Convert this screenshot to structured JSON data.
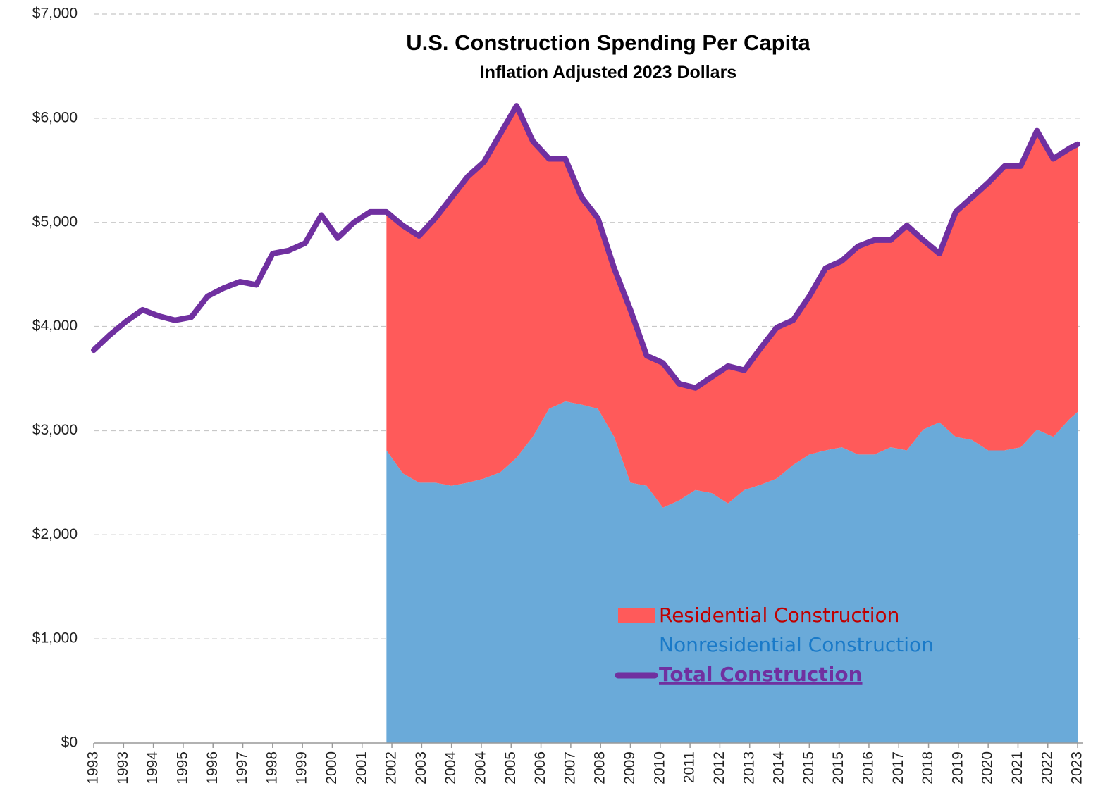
{
  "chart_data": {
    "type": "stacked_area_line",
    "title": "U.S. Construction Spending Per Capita",
    "subtitle": "Inflation Adjusted 2023 Dollars",
    "x": [
      1993,
      1993.5,
      1994,
      1994.5,
      1995,
      1995.5,
      1996,
      1996.5,
      1997,
      1997.5,
      1998,
      1998.5,
      1999,
      1999.5,
      2000,
      2000.5,
      2001,
      2001.5,
      2002,
      2002.5,
      2003,
      2003.5,
      2004,
      2004.5,
      2005,
      2005.5,
      2006,
      2006.5,
      2007,
      2007.5,
      2008,
      2008.5,
      2009,
      2009.5,
      2010,
      2010.5,
      2011,
      2011.5,
      2012,
      2012.5,
      2013,
      2013.5,
      2014,
      2014.5,
      2015,
      2015.5,
      2016,
      2016.5,
      2017,
      2017.5,
      2018,
      2018.5,
      2019,
      2019.5,
      2020,
      2020.5,
      2021,
      2021.5,
      2022,
      2022.5,
      2023,
      2023.25
    ],
    "series": [
      {
        "name": "Nonresidential Construction",
        "color": "#6aaad9",
        "kind": "area",
        "values": [
          null,
          null,
          null,
          null,
          null,
          null,
          null,
          null,
          null,
          null,
          null,
          null,
          null,
          null,
          null,
          null,
          null,
          null,
          2810,
          2590,
          2500,
          2500,
          2470,
          2500,
          2540,
          2600,
          2740,
          2940,
          3210,
          3280,
          3250,
          3210,
          2940,
          2500,
          2470,
          2260,
          2330,
          2430,
          2400,
          2300,
          2430,
          2480,
          2540,
          2670,
          2770,
          2810,
          2840,
          2770,
          2770,
          2840,
          2810,
          3010,
          3080,
          2940,
          2910,
          2810,
          2810,
          2840,
          3010,
          2940,
          3110,
          3180
        ]
      },
      {
        "name": "Residential Construction",
        "color": "#ff5a5a",
        "kind": "area",
        "values": [
          null,
          null,
          null,
          null,
          null,
          null,
          null,
          null,
          null,
          null,
          null,
          null,
          null,
          null,
          null,
          null,
          null,
          null,
          2290,
          2380,
          2370,
          2540,
          2770,
          2940,
          3040,
          3250,
          3380,
          2840,
          2400,
          2330,
          1990,
          1830,
          1620,
          1660,
          1250,
          1390,
          1120,
          980,
          1115,
          1320,
          1150,
          1310,
          1450,
          1390,
          1520,
          1750,
          1790,
          2000,
          2060,
          1990,
          2160,
          1820,
          1620,
          2160,
          2330,
          2570,
          2730,
          2700,
          2870,
          2670,
          2600,
          2570
        ]
      },
      {
        "name": "Total Construction",
        "color": "#7030a0",
        "kind": "line",
        "values": [
          3773,
          3920,
          4050,
          4160,
          4100,
          4060,
          4090,
          4290,
          4370,
          4430,
          4400,
          4700,
          4730,
          4800,
          5070,
          4850,
          5000,
          5100,
          5100,
          4970,
          4870,
          5040,
          5240,
          5440,
          5580,
          5850,
          6120,
          5780,
          5610,
          5610,
          5240,
          5040,
          4560,
          4160,
          3720,
          3650,
          3450,
          3410,
          3515,
          3620,
          3580,
          3790,
          3990,
          4060,
          4290,
          4560,
          4630,
          4770,
          4830,
          4830,
          4970,
          4830,
          4700,
          5100,
          5240,
          5380,
          5540,
          5540,
          5880,
          5610,
          5710,
          5750
        ]
      }
    ],
    "legend_order": [
      1,
      0,
      2
    ],
    "xlim": [
      1993,
      2023.4
    ],
    "xticks": [
      1993,
      {
        "value": 1993.9167,
        "label": "1993"
      },
      {
        "value": 1994.8333,
        "label": "1994"
      },
      {
        "value": 1995.75,
        "label": "1995"
      },
      {
        "value": 1996.6667,
        "label": "1996"
      },
      {
        "value": 1997.5833,
        "label": "1997"
      },
      {
        "value": 1998.5,
        "label": "1998"
      },
      {
        "value": 1999.4167,
        "label": "1999"
      },
      {
        "value": 2000.3333,
        "label": "2000"
      },
      {
        "value": 2001.25,
        "label": "2001"
      },
      {
        "value": 2002.1667,
        "label": "2002"
      },
      {
        "value": 2003.0833,
        "label": "2003"
      },
      2004,
      {
        "value": 2004.9167,
        "label": "2004"
      },
      {
        "value": 2005.8333,
        "label": "2005"
      },
      {
        "value": 2006.75,
        "label": "2006"
      },
      {
        "value": 2007.6667,
        "label": "2007"
      },
      {
        "value": 2008.5833,
        "label": "2008"
      },
      {
        "value": 2009.5,
        "label": "2009"
      },
      {
        "value": 2010.4167,
        "label": "2010"
      },
      {
        "value": 2011.3333,
        "label": "2011"
      },
      {
        "value": 2012.25,
        "label": "2012"
      },
      {
        "value": 2013.1667,
        "label": "2013"
      },
      {
        "value": 2014.0833,
        "label": "2014"
      },
      2015,
      {
        "value": 2015.9167,
        "label": "2015"
      },
      {
        "value": 2016.8333,
        "label": "2016"
      },
      {
        "value": 2017.75,
        "label": "2017"
      },
      {
        "value": 2018.6667,
        "label": "2018"
      },
      {
        "value": 2019.5833,
        "label": "2019"
      },
      {
        "value": 2020.5,
        "label": "2020"
      },
      {
        "value": 2021.4167,
        "label": "2021"
      },
      {
        "value": 2022.3333,
        "label": "2022"
      },
      {
        "value": 2023.25,
        "label": "2023"
      }
    ],
    "ylim": [
      0,
      7000
    ],
    "yticks": [
      {
        "value": 0,
        "label": "$0"
      },
      {
        "value": 1000,
        "label": "$1,000"
      },
      {
        "value": 2000,
        "label": "$2,000"
      },
      {
        "value": 3000,
        "label": "$3,000"
      },
      {
        "value": 4000,
        "label": "$4,000"
      },
      {
        "value": 5000,
        "label": "$5,000"
      },
      {
        "value": 6000,
        "label": "$6,000"
      },
      {
        "value": 7000,
        "label": "$7,000"
      }
    ],
    "grid": true
  }
}
